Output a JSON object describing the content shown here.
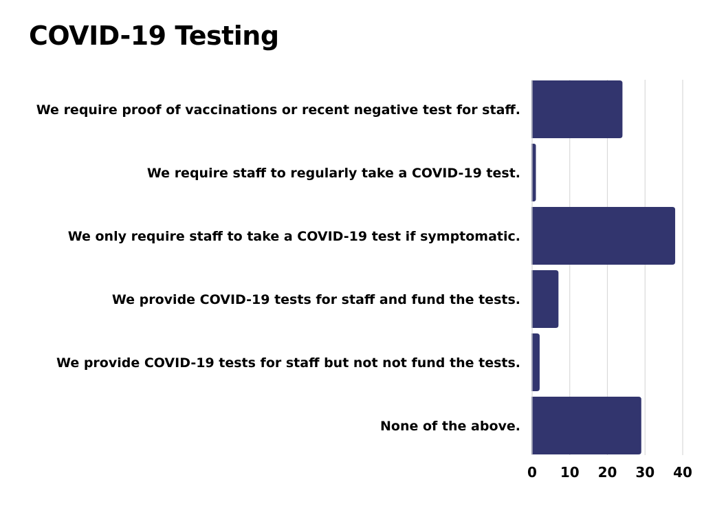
{
  "chart_data": {
    "type": "bar",
    "orientation": "horizontal",
    "title": "COVID-19 Testing",
    "xlabel": "",
    "ylabel": "",
    "categories": [
      "We require proof of vaccinations or recent negative test for staff.",
      "We require staff to regularly take a COVID-19 test.",
      "We only require staff to take a COVID-19 test if symptomatic.",
      "We provide COVID-19 tests for staff and fund the tests.",
      "We provide COVID-19 tests for staff but not not fund the tests.",
      "None of the above."
    ],
    "values": [
      24,
      1,
      38,
      7,
      2,
      29
    ],
    "xlim": [
      0,
      40
    ],
    "xticks": [
      "0",
      "10",
      "20",
      "30",
      "40"
    ],
    "grid": true,
    "legend": "none",
    "bar_color": "#32356e",
    "grid_color": "#d9d9d9"
  }
}
